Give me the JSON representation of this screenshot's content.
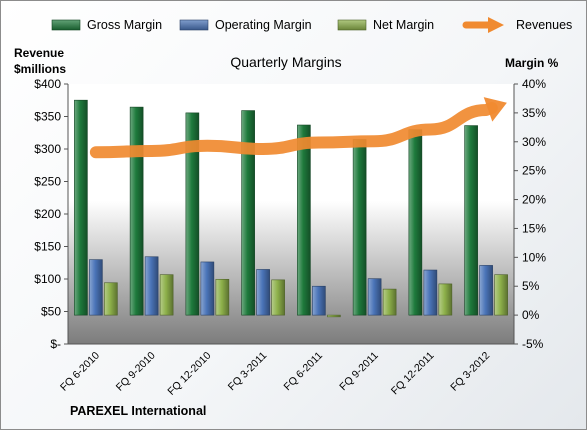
{
  "chart_data": {
    "type": "bar",
    "title": "Quarterly Margins",
    "ylabel_left": [
      "Revenue",
      "$millions"
    ],
    "ylabel_right": "Margin %",
    "footer": "PAREXEL International",
    "categories": [
      "FQ 6-2010",
      "FQ 9-2010",
      "FQ 12-2010",
      "FQ 3-2011",
      "FQ 6-2011",
      "FQ 9-2011",
      "FQ 12-2011",
      "FQ 3-2012"
    ],
    "ylim_left": [
      0,
      400
    ],
    "yticks_left": [
      "$-",
      "$50",
      "$100",
      "$150",
      "$200",
      "$250",
      "$300",
      "$350",
      "$400"
    ],
    "ylim_right": [
      -5,
      40
    ],
    "yticks_right": [
      "-5%",
      "0%",
      "5%",
      "10%",
      "15%",
      "20%",
      "25%",
      "30%",
      "35%",
      "40%"
    ],
    "series": [
      {
        "name": "Gross Margin",
        "axis": "right",
        "kind": "bar",
        "color": "#1e7a3c",
        "values": [
          37.2,
          36.0,
          35.0,
          35.4,
          32.9,
          30.4,
          32.1,
          32.8
        ]
      },
      {
        "name": "Operating Margin",
        "axis": "right",
        "kind": "bar",
        "color": "#4a74b8",
        "values": [
          9.6,
          10.1,
          9.2,
          7.9,
          5.0,
          6.3,
          7.8,
          8.6
        ]
      },
      {
        "name": "Net Margin",
        "axis": "right",
        "kind": "bar",
        "color": "#8db04a",
        "values": [
          5.6,
          7.0,
          6.2,
          6.1,
          -0.3,
          4.5,
          5.4,
          7.0
        ]
      },
      {
        "name": "Revenues",
        "axis": "left",
        "kind": "line",
        "color": "#f08a30",
        "values": [
          295,
          297,
          305,
          300,
          310,
          312,
          330,
          360
        ]
      }
    ],
    "legend": [
      {
        "label": "Gross Margin",
        "color": "#1e7a3c",
        "kind": "bar"
      },
      {
        "label": "Operating Margin",
        "color": "#4a74b8",
        "kind": "bar"
      },
      {
        "label": "Net Margin",
        "color": "#8db04a",
        "kind": "bar"
      },
      {
        "label": "Revenues",
        "color": "#f08a30",
        "kind": "line"
      }
    ],
    "grid": false,
    "legend_position": "top"
  }
}
